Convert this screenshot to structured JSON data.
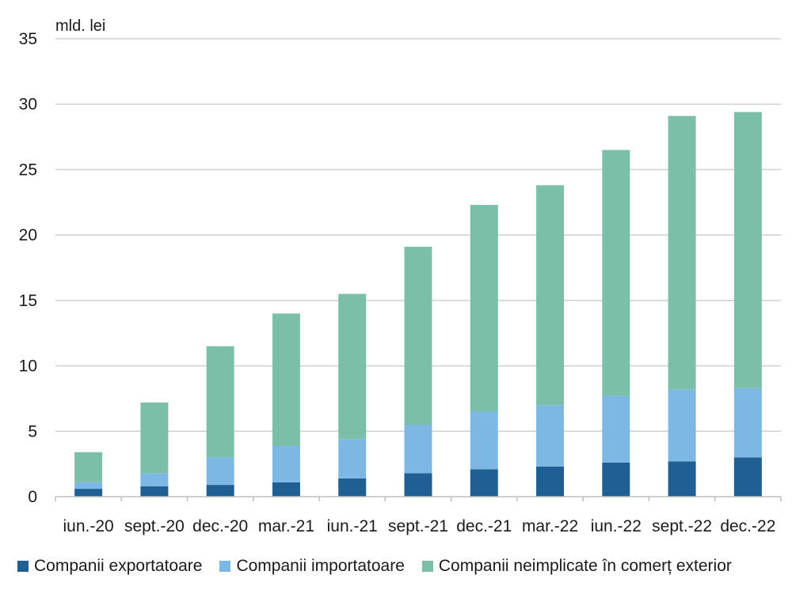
{
  "chart_data": {
    "type": "bar",
    "stacked": true,
    "unit_label": "mld. lei",
    "categories": [
      "iun.-20",
      "sept.-20",
      "dec.-20",
      "mar.-21",
      "iun.-21",
      "sept.-21",
      "dec.-21",
      "mar.-22",
      "iun.-22",
      "sept.-22",
      "dec.-22"
    ],
    "series": [
      {
        "name": "Companii exportatoare",
        "color": "#1f5f94",
        "values": [
          0.6,
          0.8,
          0.9,
          1.1,
          1.4,
          1.8,
          2.1,
          2.3,
          2.6,
          2.7,
          3.0
        ]
      },
      {
        "name": "Companii importatoare",
        "color": "#7db8e5",
        "values": [
          0.5,
          1.0,
          2.1,
          2.8,
          3.0,
          3.7,
          4.4,
          4.7,
          5.1,
          5.5,
          5.3
        ]
      },
      {
        "name": "Companii neimplicate în comerț exterior",
        "color": "#7bbfa8",
        "values": [
          2.3,
          5.4,
          8.5,
          10.1,
          11.1,
          13.6,
          15.8,
          16.8,
          18.8,
          20.9,
          21.1
        ]
      }
    ],
    "ylim": [
      0,
      35
    ],
    "yticks": [
      0,
      5,
      10,
      15,
      20,
      25,
      30,
      35
    ],
    "grid": true,
    "legend_position": "bottom"
  }
}
